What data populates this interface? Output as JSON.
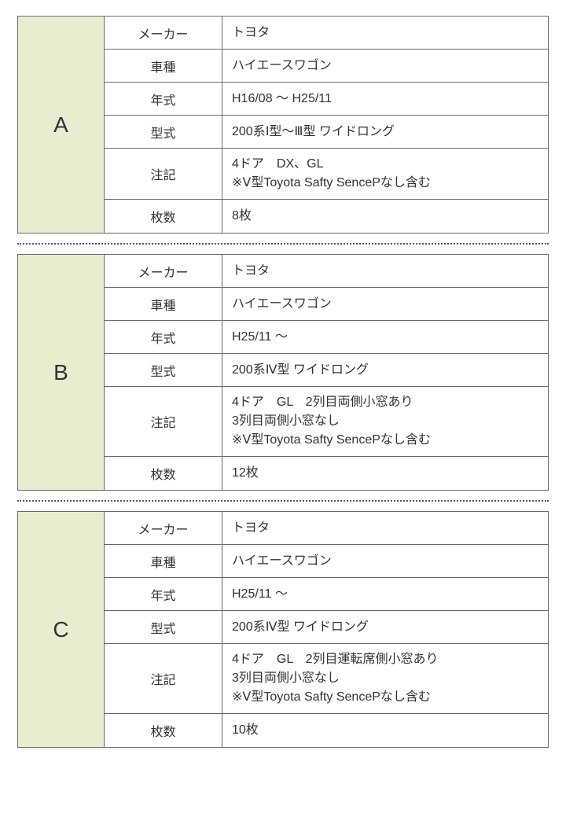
{
  "colors": {
    "border": "#6a6a6a",
    "letter_bg": "#e9edd0",
    "text": "#323232",
    "page_bg": "#ffffff",
    "divider": "#555555"
  },
  "labels": {
    "maker": "メーカー",
    "model": "車種",
    "year": "年式",
    "type": "型式",
    "note": "注記",
    "count": "枚数"
  },
  "blocks": [
    {
      "letter": "A",
      "maker": "トヨタ",
      "model": "ハイエースワゴン",
      "year": "H16/08 〜 H25/11",
      "type": "200系Ⅰ型〜Ⅲ型 ワイドロング",
      "note": "4ドア　DX、GL\n※Ⅴ型Toyota Safty SencePなし含む",
      "count": "8枚"
    },
    {
      "letter": "B",
      "maker": "トヨタ",
      "model": "ハイエースワゴン",
      "year": "H25/11 〜",
      "type": "200系Ⅳ型 ワイドロング",
      "note": "4ドア　GL　2列目両側小窓あり\n3列目両側小窓なし\n※Ⅴ型Toyota Safty SencePなし含む",
      "count": "12枚"
    },
    {
      "letter": "C",
      "maker": "トヨタ",
      "model": "ハイエースワゴン",
      "year": "H25/11 〜",
      "type": "200系Ⅳ型 ワイドロング",
      "note": "4ドア　GL　2列目運転席側小窓あり\n3列目両側小窓なし\n※Ⅴ型Toyota Safty SencePなし含む",
      "count": "10枚"
    }
  ]
}
